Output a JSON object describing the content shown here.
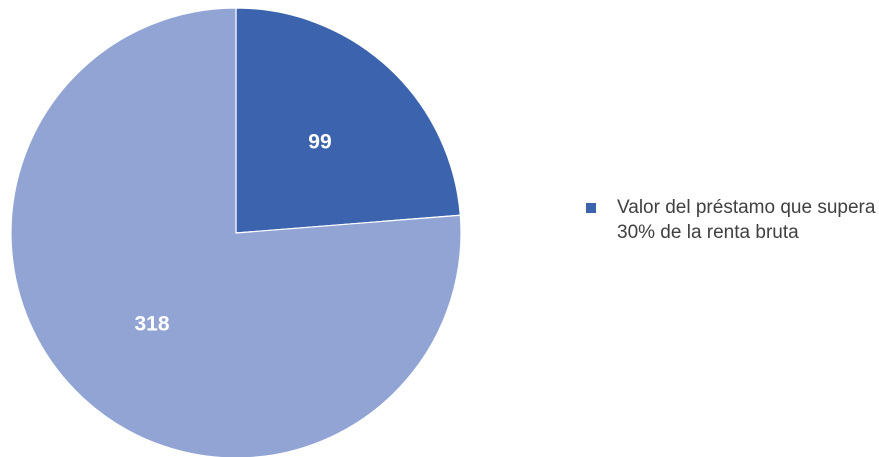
{
  "chart_data": {
    "type": "pie",
    "title": "",
    "slices": [
      {
        "label": "Valor del préstamo que supera 30% de la renta bruta",
        "value": 99,
        "color": "#3c64ae",
        "value_label": "99"
      },
      {
        "label": "",
        "value": 318,
        "color": "#91a4d4",
        "value_label": "318"
      }
    ],
    "start_angle_deg": 0,
    "direction": "clockwise",
    "slice_border_color": "#ffffff",
    "legend": {
      "position": "right",
      "entries": [
        {
          "label": "Valor del préstamo que supera 30% de la renta bruta",
          "color": "#3c64ae"
        }
      ]
    }
  }
}
